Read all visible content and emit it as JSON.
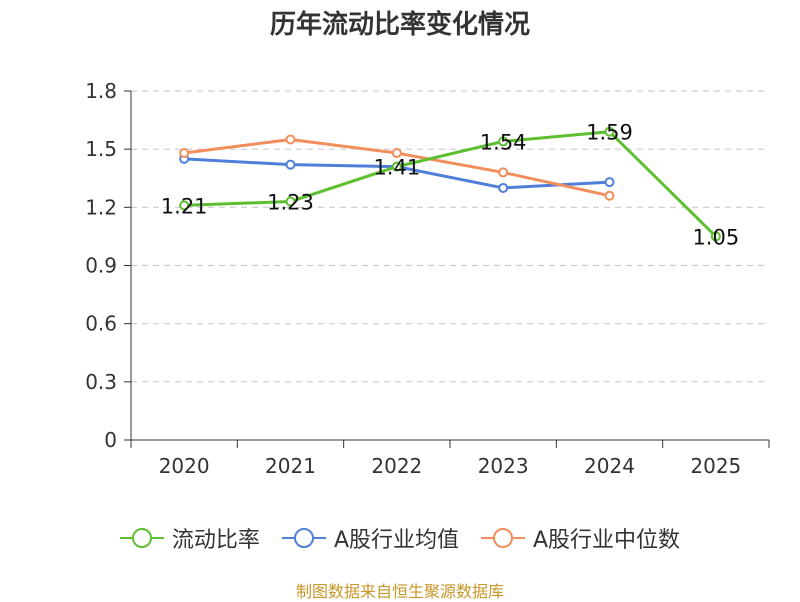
{
  "chart_data": {
    "type": "line",
    "title": "历年流动比率变化情况",
    "categories": [
      "2020",
      "2021",
      "2022",
      "2023",
      "2024",
      "2025"
    ],
    "ylim": [
      0,
      1.8
    ],
    "yticks": [
      "0",
      "0.3",
      "0.6",
      "0.9",
      "1.2",
      "1.5",
      "1.8"
    ],
    "grid": true,
    "legend_position": "bottom",
    "series": [
      {
        "name": "流动比率",
        "color": "#5dbf2f",
        "values": [
          1.21,
          1.23,
          1.41,
          1.54,
          1.59,
          1.05
        ],
        "labels": [
          "1.21",
          "1.23",
          "1.41",
          "1.54",
          "1.59",
          "1.05"
        ]
      },
      {
        "name": "A股行业均值",
        "color": "#4f7fd9",
        "values": [
          1.45,
          1.42,
          1.41,
          1.3,
          1.33,
          null
        ]
      },
      {
        "name": "A股行业中位数",
        "color": "#f28e5c",
        "values": [
          1.48,
          1.55,
          1.48,
          1.38,
          1.26,
          null
        ]
      }
    ]
  },
  "source_text": "制图数据来自恒生聚源数据库"
}
